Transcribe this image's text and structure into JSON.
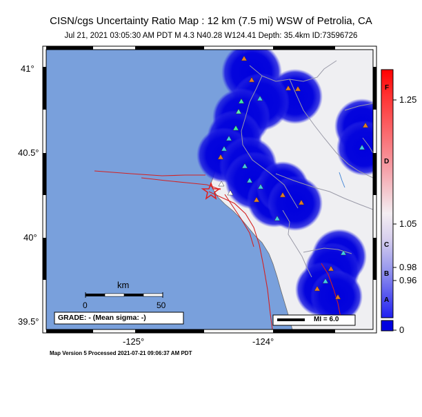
{
  "title": "CISN/cgs Uncertainty Ratio Map : 12 km (7.5 mi) WSW of Petrolia, CA",
  "subtitle": "Jul 21, 2021 03:05:30 AM PDT    M 4.3    N40.28 W124.41    Depth: 35.4km    ID:73596726",
  "axes": {
    "lat_labels": [
      "41°",
      "40.5°",
      "40°",
      "39.5°"
    ],
    "lon_labels": [
      "-125°",
      "-124°"
    ]
  },
  "scale_bar": {
    "unit_label": "km",
    "ticks": [
      "0",
      "50"
    ]
  },
  "grade_box": "GRADE: - (Mean sigma: -)",
  "mi_legend": "MI = 6.0",
  "colorbar": {
    "value_labels": [
      "1.25",
      "1.05",
      "0.98",
      "0.96",
      "0"
    ],
    "letter_labels": [
      "F",
      "D",
      "C",
      "B",
      "A"
    ],
    "colors": {
      "top": "#ff0000",
      "middle": "#f4eef2",
      "bottom": "#0000ff",
      "base_box": "#0000e0"
    }
  },
  "footer": "Map Version 5 Processed 2021-07-21 09:06:37 AM PDT",
  "colors": {
    "ocean": "#79a0dc",
    "land": "#efeff2",
    "uncertainty": "#1010e0",
    "fault": "#d42020",
    "epicenter": "#e02020"
  }
}
